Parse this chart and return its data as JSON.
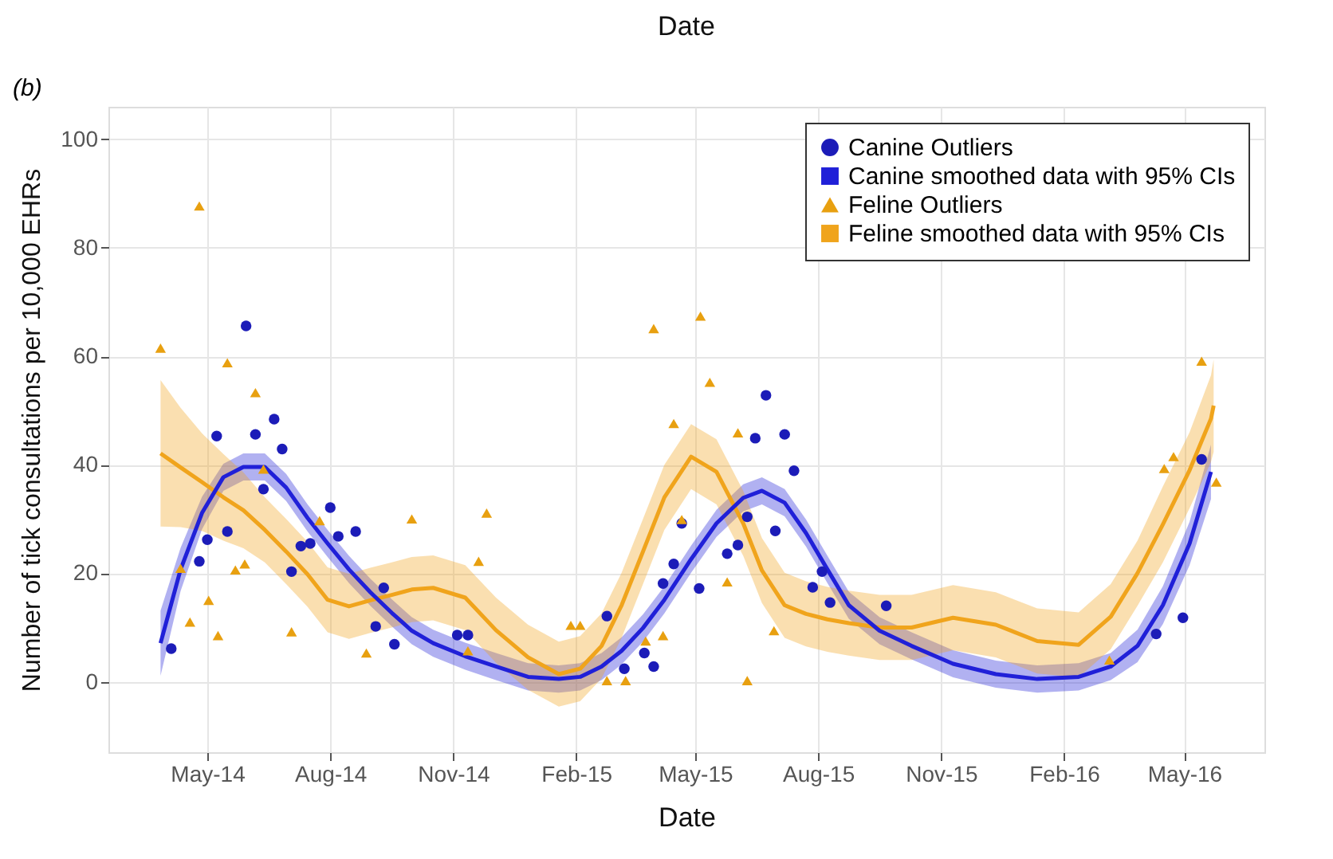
{
  "chart_data": {
    "type": "line",
    "x2label": "Date",
    "xlabel": "Date",
    "ylabel": "Number of tick consultations per 10,000 EHRs",
    "annotations": [
      "(b)"
    ],
    "xlim": [
      "2014-02-16",
      "2016-06-30"
    ],
    "xticks": [
      {
        "value": "2014-05-01",
        "label": "May-14"
      },
      {
        "value": "2014-08-01",
        "label": "Aug-14"
      },
      {
        "value": "2014-11-01",
        "label": "Nov-14"
      },
      {
        "value": "2015-02-01",
        "label": "Feb-15"
      },
      {
        "value": "2015-05-01",
        "label": "May-15"
      },
      {
        "value": "2015-08-01",
        "label": "Aug-15"
      },
      {
        "value": "2015-11-01",
        "label": "Nov-15"
      },
      {
        "value": "2016-02-01",
        "label": "Feb-16"
      },
      {
        "value": "2016-05-01",
        "label": "May-16"
      }
    ],
    "ylim": [
      -13,
      106
    ],
    "yticks": [
      0,
      20,
      40,
      60,
      80,
      100
    ],
    "grid": true,
    "legend": "top right",
    "series": [
      {
        "name": "Canine Outliers",
        "type": "scatter",
        "marker": "circle",
        "color": "#1c1cb8",
        "x": [
          "2014-04-04",
          "2014-04-25",
          "2014-05-01",
          "2014-05-08",
          "2014-05-16",
          "2014-05-30",
          "2014-06-06",
          "2014-06-12",
          "2014-06-20",
          "2014-06-26",
          "2014-07-03",
          "2014-07-10",
          "2014-07-17",
          "2014-08-01",
          "2014-08-07",
          "2014-08-20",
          "2014-09-04",
          "2014-09-10",
          "2014-09-18",
          "2014-11-04",
          "2014-11-12",
          "2015-02-24",
          "2015-03-09",
          "2015-03-24",
          "2015-03-31",
          "2015-04-07",
          "2015-04-15",
          "2015-04-21",
          "2015-05-04",
          "2015-05-25",
          "2015-06-02",
          "2015-06-09",
          "2015-06-15",
          "2015-06-23",
          "2015-06-30",
          "2015-07-07",
          "2015-07-14",
          "2015-07-28",
          "2015-08-04",
          "2015-08-10",
          "2015-09-21",
          "2016-04-10",
          "2016-04-30",
          "2016-05-14"
        ],
        "values": [
          6.1,
          22.2,
          26.2,
          45.3,
          27.7,
          65.6,
          45.6,
          35.5,
          48.4,
          42.9,
          20.3,
          25,
          25.5,
          32.1,
          26.8,
          27.7,
          10.2,
          17.3,
          6.9,
          8.6,
          8.6,
          12.1,
          2.4,
          5.3,
          2.8,
          18.1,
          21.7,
          29.2,
          17.2,
          23.6,
          25.2,
          30.4,
          44.9,
          52.8,
          27.8,
          45.6,
          38.9,
          17.4,
          20.3,
          14.6,
          14,
          8.8,
          11.8,
          41
        ]
      },
      {
        "name": "Canine smoothed data with 95% CIs",
        "type": "line",
        "line_style": "solid",
        "color": "#2020d8",
        "x": [
          "2014-03-27",
          "2014-04-11",
          "2014-04-27",
          "2014-05-13",
          "2014-05-28",
          "2014-06-13",
          "2014-06-29",
          "2014-07-15",
          "2014-07-30",
          "2014-08-15",
          "2014-08-31",
          "2014-09-16",
          "2014-10-01",
          "2014-10-17",
          "2014-11-10",
          "2014-12-03",
          "2014-12-27",
          "2015-01-19",
          "2015-02-04",
          "2015-02-20",
          "2015-03-07",
          "2015-03-23",
          "2015-04-08",
          "2015-04-28",
          "2015-05-17",
          "2015-06-06",
          "2015-06-20",
          "2015-07-07",
          "2015-07-23",
          "2015-08-08",
          "2015-08-24",
          "2015-09-16",
          "2015-10-10",
          "2015-11-10",
          "2015-12-12",
          "2016-01-12",
          "2016-02-12",
          "2016-03-07",
          "2016-03-27",
          "2016-04-15",
          "2016-05-05",
          "2016-05-21"
        ],
        "values": [
          7.1,
          20.7,
          31.1,
          37.7,
          39.6,
          39.6,
          35.8,
          30.2,
          25.5,
          20.7,
          16.5,
          12.7,
          9.4,
          7.1,
          4.7,
          2.8,
          0.9,
          0.5,
          0.9,
          2.8,
          5.7,
          9.9,
          15.1,
          22.6,
          29.2,
          33.9,
          35.2,
          33,
          27.4,
          20.7,
          14.1,
          9.4,
          6.6,
          3.3,
          1.4,
          0.5,
          0.9,
          2.8,
          6.6,
          14.1,
          25.5,
          38.7
        ],
        "lower": [
          1.1,
          16.7,
          28.1,
          35.2,
          37.1,
          37.1,
          33.3,
          27.7,
          23,
          18.2,
          14,
          10.2,
          6.9,
          4.6,
          2.2,
          0.3,
          -1.6,
          -2,
          -1.6,
          0.3,
          3.2,
          7.4,
          12.6,
          20.1,
          26.7,
          31.4,
          32.7,
          30.5,
          24.9,
          18.2,
          11.6,
          6.9,
          4.1,
          0.8,
          -1.1,
          -2,
          -1.6,
          0.3,
          3.6,
          10.6,
          21.5,
          33.7
        ],
        "upper": [
          13.1,
          24.7,
          34.1,
          40.2,
          42.1,
          42.1,
          38.3,
          32.7,
          28,
          23.2,
          19,
          15.2,
          11.9,
          9.6,
          7.2,
          5.3,
          3.4,
          3,
          3.4,
          5.3,
          8.2,
          12.4,
          17.6,
          25.1,
          31.7,
          36.4,
          37.7,
          35.5,
          29.9,
          23.2,
          16.6,
          11.9,
          9.1,
          5.8,
          3.9,
          3,
          3.4,
          5.3,
          9.6,
          17.6,
          29.5,
          43.7
        ]
      },
      {
        "name": "Feline Outliers",
        "type": "scatter",
        "marker": "triangle",
        "color": "#e8a010",
        "x": [
          "2014-03-27",
          "2014-04-11",
          "2014-04-18",
          "2014-04-25",
          "2014-05-02",
          "2014-05-09",
          "2014-05-16",
          "2014-05-22",
          "2014-05-29",
          "2014-06-06",
          "2014-06-12",
          "2014-07-03",
          "2014-07-24",
          "2014-08-28",
          "2014-10-01",
          "2014-11-12",
          "2014-11-20",
          "2014-11-26",
          "2015-01-28",
          "2015-02-04",
          "2015-02-24",
          "2015-03-10",
          "2015-03-25",
          "2015-03-31",
          "2015-04-07",
          "2015-04-15",
          "2015-04-21",
          "2015-05-05",
          "2015-05-12",
          "2015-05-25",
          "2015-06-02",
          "2015-06-09",
          "2015-06-29",
          "2016-03-06",
          "2016-04-16",
          "2016-04-23",
          "2016-05-14",
          "2016-05-25"
        ],
        "values": [
          61.5,
          20.9,
          11,
          87.7,
          15,
          8.5,
          58.8,
          20.6,
          21.7,
          53.3,
          39.2,
          9.2,
          29.7,
          5.3,
          30,
          5.7,
          22.2,
          31.1,
          10.4,
          10.4,
          0.2,
          0.2,
          7.5,
          65.1,
          8.5,
          47.6,
          29.9,
          67.4,
          55.2,
          18.4,
          45.9,
          0.2,
          9.4,
          4,
          39.3,
          41.5,
          59.1,
          36.8
        ]
      },
      {
        "name": "Feline smoothed data with 95% CIs",
        "type": "line",
        "line_style": "solid",
        "color": "#f0a41c",
        "x": [
          "2014-03-27",
          "2014-04-11",
          "2014-04-27",
          "2014-05-13",
          "2014-05-28",
          "2014-06-13",
          "2014-06-29",
          "2014-07-15",
          "2014-07-30",
          "2014-08-15",
          "2014-08-31",
          "2014-09-16",
          "2014-10-01",
          "2014-10-17",
          "2014-11-10",
          "2014-12-03",
          "2014-12-27",
          "2015-01-19",
          "2015-02-04",
          "2015-02-20",
          "2015-03-07",
          "2015-03-23",
          "2015-04-08",
          "2015-04-28",
          "2015-05-17",
          "2015-06-06",
          "2015-06-20",
          "2015-07-07",
          "2015-07-23",
          "2015-08-08",
          "2015-08-24",
          "2015-09-16",
          "2015-10-10",
          "2015-11-10",
          "2015-12-12",
          "2016-01-12",
          "2016-02-12",
          "2016-03-07",
          "2016-03-27",
          "2016-04-15",
          "2016-05-05",
          "2016-05-21",
          "2016-05-23"
        ],
        "values": [
          42.1,
          39.5,
          36.8,
          34,
          31.6,
          28,
          24,
          19.8,
          15.1,
          13.9,
          15,
          16,
          17,
          17.3,
          15.5,
          9.5,
          4.5,
          1.4,
          2.4,
          6.6,
          14.1,
          24,
          34,
          41.5,
          38.7,
          29.2,
          20.5,
          14.1,
          12.5,
          11.5,
          10.8,
          10,
          10,
          11.8,
          10.5,
          7.5,
          6.8,
          12,
          20,
          29,
          39,
          48.5,
          50.9
        ],
        "lower": [
          28.6,
          28.5,
          27.8,
          26,
          24.6,
          22,
          18,
          13.8,
          9.1,
          7.9,
          9,
          10,
          11,
          11.3,
          9.5,
          3.5,
          -1.5,
          -4.6,
          -3.6,
          0.6,
          8.1,
          18,
          28,
          35.5,
          32.7,
          23.2,
          14.5,
          8.1,
          6.5,
          5.5,
          4.8,
          4,
          4,
          5.8,
          4.5,
          1.5,
          0.8,
          6,
          14,
          22,
          32,
          40.5,
          42.4
        ],
        "upper": [
          55.6,
          50.5,
          45.8,
          42,
          38.6,
          34,
          30,
          25.8,
          21.1,
          19.9,
          21,
          22,
          23,
          23.3,
          21.5,
          15.5,
          10.5,
          7.4,
          8.4,
          12.6,
          20.1,
          30,
          40,
          47.5,
          44.7,
          35.2,
          26.5,
          20.1,
          18.5,
          17.5,
          16.8,
          16,
          16,
          17.8,
          16.5,
          13.5,
          12.8,
          18,
          26,
          36,
          46,
          56.5,
          59.4
        ]
      }
    ]
  }
}
